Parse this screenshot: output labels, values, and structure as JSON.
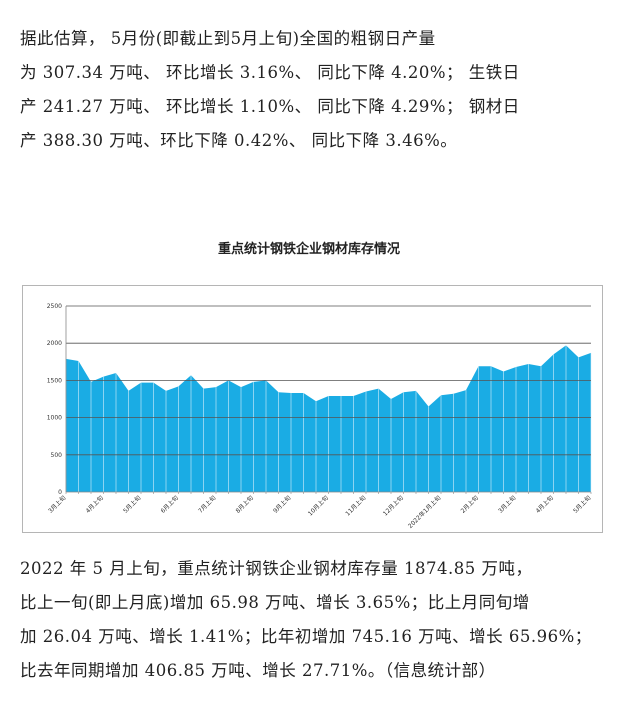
{
  "top_paragraph": {
    "lines": [
      "据此估算， 5月份(即截止到5月上旬)全国的粗钢日产量",
      "为 307.34 万吨、 环比增长 3.16%、 同比下降 4.20%；  生铁日",
      "产 241.27 万吨、 环比增长 1.10%、 同比下降 4.29%；  钢材日",
      "产 388.30 万吨、环比下降 0.42%、 同比下降 3.46%。"
    ]
  },
  "chart_data": {
    "type": "area",
    "title": "重点统计钢铁企业钢材库存情况",
    "xlabel": "",
    "ylabel": "",
    "ylim": [
      0,
      2500
    ],
    "yticks": [
      0,
      500,
      1000,
      1500,
      2000,
      2500
    ],
    "grid": true,
    "x_tick_labels": [
      {
        "index": 0,
        "label": "3月上旬"
      },
      {
        "index": 3,
        "label": "4月上旬"
      },
      {
        "index": 6,
        "label": "5月上旬"
      },
      {
        "index": 9,
        "label": "6月上旬"
      },
      {
        "index": 12,
        "label": "7月上旬"
      },
      {
        "index": 15,
        "label": "8月上旬"
      },
      {
        "index": 18,
        "label": "9月上旬"
      },
      {
        "index": 21,
        "label": "10月上旬"
      },
      {
        "index": 24,
        "label": "11月上旬"
      },
      {
        "index": 27,
        "label": "12月上旬"
      },
      {
        "index": 30,
        "label": "2022年1月上旬"
      },
      {
        "index": 33,
        "label": "2月上旬"
      },
      {
        "index": 36,
        "label": "3月上旬"
      },
      {
        "index": 39,
        "label": "4月上旬"
      },
      {
        "index": 42,
        "label": "5月上旬"
      }
    ],
    "series": [
      {
        "color": "#1aace4",
        "values": [
          1790,
          1760,
          1480,
          1550,
          1600,
          1360,
          1470,
          1470,
          1360,
          1420,
          1570,
          1390,
          1410,
          1500,
          1410,
          1480,
          1500,
          1340,
          1330,
          1330,
          1220,
          1290,
          1290,
          1290,
          1350,
          1390,
          1250,
          1340,
          1360,
          1150,
          1300,
          1320,
          1370,
          1690,
          1690,
          1620,
          1680,
          1720,
          1690,
          1850,
          1970,
          1810,
          1870
        ]
      }
    ]
  },
  "bottom_paragraph": {
    "lines": [
      "2022 年 5 月上旬，重点统计钢铁企业钢材库存量 1874.85 万吨，",
      "比上一旬(即上月底)增加 65.98 万吨、增长 3.65%；比上月同旬增",
      "加 26.04 万吨、增长 1.41%；比年初增加 745.16 万吨、增长 65.96%；",
      "比去年同期增加 406.85 万吨、增长 27.71%。（信息统计部）"
    ]
  }
}
